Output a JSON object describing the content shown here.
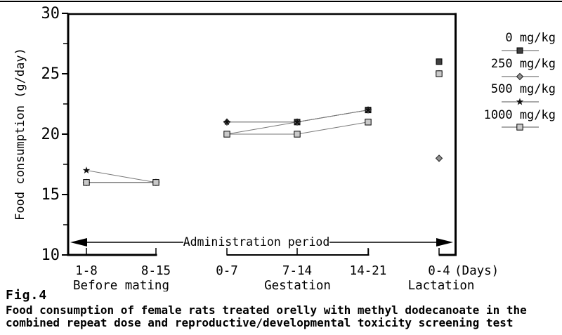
{
  "figure": {
    "fig_label": "Fig.4",
    "caption_line1": "Food consumption of female rats treated orelly with methyl dodecanoate in the",
    "caption_line2": "combined repeat dose and reproductive/developmental toxicity screening test"
  },
  "chart_data": {
    "type": "line",
    "title": "",
    "xlabel": "",
    "ylabel": "Food consumption (g/day)",
    "ylim": [
      10,
      30
    ],
    "yticks": [
      10,
      15,
      20,
      25,
      30
    ],
    "yticks_minor": [
      12.5,
      17.5,
      22.5,
      27.5
    ],
    "categories": [
      "1-8",
      "8-15",
      "0-7",
      "7-14",
      "14-21",
      "0-4"
    ],
    "x_unit_label": "(Days)",
    "groups": [
      {
        "label": "Before mating",
        "category_indices": [
          0,
          1
        ]
      },
      {
        "label": "Gestation",
        "category_indices": [
          2,
          3,
          4
        ]
      },
      {
        "label": "Lactation",
        "category_indices": [
          5
        ]
      }
    ],
    "annotation": "Administration period",
    "legend_position": "right",
    "grid": false,
    "series": [
      {
        "name": "0 mg/kg",
        "marker": "square-dark",
        "values": [
          16,
          16,
          20,
          21,
          22,
          26
        ]
      },
      {
        "name": "250 mg/kg",
        "marker": "diamond",
        "values": [
          16,
          16,
          21,
          21,
          22,
          18
        ]
      },
      {
        "name": "500 mg/kg",
        "marker": "star",
        "values": [
          17,
          16,
          21,
          21,
          22,
          25
        ]
      },
      {
        "name": "1000 mg/kg",
        "marker": "square-light",
        "values": [
          16,
          16,
          20,
          20,
          21,
          25
        ]
      }
    ],
    "colors": {
      "axis": "#000000",
      "line": "#777777",
      "marker_square_dark": "#3f3f3f",
      "marker_square_light": "#c9c9c9",
      "marker_diamond": "#8f8f8f",
      "marker_star": "#111111",
      "text": "#000000"
    }
  }
}
